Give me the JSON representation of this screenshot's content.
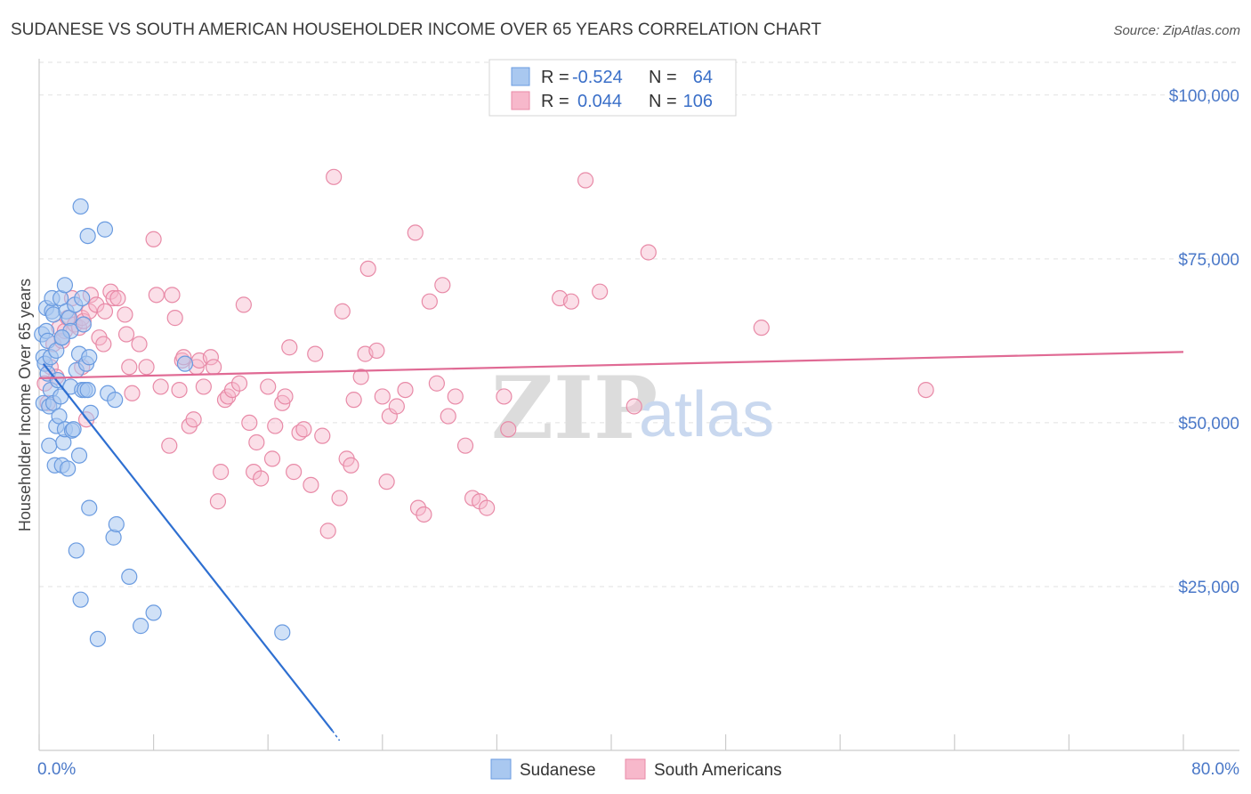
{
  "chart_data": {
    "type": "scatter",
    "title": "SUDANESE VS SOUTH AMERICAN HOUSEHOLDER INCOME OVER 65 YEARS CORRELATION CHART",
    "source": "Source: ZipAtlas.com",
    "ylabel": "Householder Income Over 65 years",
    "xlim": [
      0,
      80
    ],
    "ylim": [
      0,
      105000
    ],
    "x_tick_labels": {
      "min": "0.0%",
      "max": "80.0%"
    },
    "y_ticks": [
      {
        "value": 25000,
        "label": "$25,000"
      },
      {
        "value": 50000,
        "label": "$50,000"
      },
      {
        "value": 75000,
        "label": "$75,000"
      },
      {
        "value": 100000,
        "label": "$100,000"
      }
    ],
    "legend": {
      "rows": [
        {
          "r_label": "R = ",
          "r_value": "-0.524",
          "n_label": "N = ",
          "n_value": "64"
        },
        {
          "r_label": "R = ",
          "r_value": "0.044",
          "n_label": "N = ",
          "n_value": "106"
        }
      ]
    },
    "watermark": {
      "zip": "ZIP",
      "atlas": "atlas"
    },
    "colors": {
      "sudanese_fill": "#a9c8f0",
      "sudanese_stroke": "#6a9be0",
      "sudanese_line": "#2e6fd1",
      "south_fill": "#f7b8cb",
      "south_stroke": "#e88aa7",
      "south_line": "#e06a94",
      "grid": "#e2e2e2",
      "axis": "#cccccc"
    },
    "series": [
      {
        "name": "Sudanese",
        "trend": {
          "x0": 0.3,
          "y0": 59000,
          "x1": 20.5,
          "y1": 3000,
          "dash_to_x": 21.0,
          "dash_to_y": 1500
        },
        "points": [
          [
            0.2,
            63500
          ],
          [
            0.3,
            60000
          ],
          [
            0.3,
            53000
          ],
          [
            0.4,
            59000
          ],
          [
            0.5,
            67500
          ],
          [
            0.5,
            64000
          ],
          [
            0.6,
            62500
          ],
          [
            0.6,
            57500
          ],
          [
            0.7,
            46500
          ],
          [
            0.7,
            52500
          ],
          [
            0.8,
            60000
          ],
          [
            0.8,
            55000
          ],
          [
            0.9,
            67000
          ],
          [
            0.9,
            69000
          ],
          [
            1.0,
            53000
          ],
          [
            1.0,
            66500
          ],
          [
            1.1,
            43500
          ],
          [
            1.2,
            49500
          ],
          [
            1.2,
            61000
          ],
          [
            1.3,
            56500
          ],
          [
            1.4,
            51000
          ],
          [
            1.5,
            54000
          ],
          [
            1.5,
            69000
          ],
          [
            1.6,
            63000
          ],
          [
            1.6,
            43500
          ],
          [
            1.7,
            47000
          ],
          [
            1.8,
            71000
          ],
          [
            1.8,
            49000
          ],
          [
            1.9,
            67000
          ],
          [
            2.0,
            43000
          ],
          [
            2.1,
            66000
          ],
          [
            2.2,
            64000
          ],
          [
            2.2,
            55500
          ],
          [
            2.3,
            48800
          ],
          [
            2.4,
            49000
          ],
          [
            2.5,
            68000
          ],
          [
            2.6,
            30500
          ],
          [
            2.6,
            58000
          ],
          [
            2.8,
            60500
          ],
          [
            2.8,
            45000
          ],
          [
            2.9,
            83000
          ],
          [
            3.0,
            55000
          ],
          [
            3.0,
            69000
          ],
          [
            3.1,
            65000
          ],
          [
            3.2,
            55000
          ],
          [
            3.4,
            78500
          ],
          [
            3.6,
            51500
          ],
          [
            3.3,
            59000
          ],
          [
            3.5,
            60000
          ],
          [
            3.4,
            55000
          ],
          [
            2.9,
            23000
          ],
          [
            3.5,
            37000
          ],
          [
            4.1,
            17000
          ],
          [
            4.6,
            79500
          ],
          [
            4.8,
            54500
          ],
          [
            5.2,
            32500
          ],
          [
            5.3,
            53500
          ],
          [
            5.4,
            34500
          ],
          [
            6.3,
            26500
          ],
          [
            7.1,
            19000
          ],
          [
            8.0,
            21000
          ],
          [
            10.2,
            59000
          ],
          [
            17.0,
            18000
          ],
          [
            1.6,
            63000
          ]
        ]
      },
      {
        "name": "South Americans",
        "trend": {
          "x0": 0,
          "y0": 56800,
          "x1": 80,
          "y1": 60800
        },
        "points": [
          [
            0.4,
            56000
          ],
          [
            0.6,
            53000
          ],
          [
            0.8,
            58500
          ],
          [
            1.0,
            62000
          ],
          [
            1.2,
            57000
          ],
          [
            1.4,
            64500
          ],
          [
            1.6,
            62500
          ],
          [
            1.8,
            64000
          ],
          [
            2.0,
            66000
          ],
          [
            2.3,
            69000
          ],
          [
            2.5,
            65000
          ],
          [
            2.8,
            64500
          ],
          [
            3.0,
            58500
          ],
          [
            3.0,
            66000
          ],
          [
            3.1,
            65500
          ],
          [
            3.3,
            50500
          ],
          [
            3.5,
            67000
          ],
          [
            3.6,
            69500
          ],
          [
            4.0,
            68000
          ],
          [
            4.2,
            63000
          ],
          [
            4.5,
            62000
          ],
          [
            4.6,
            67000
          ],
          [
            5.0,
            70000
          ],
          [
            5.2,
            69000
          ],
          [
            5.5,
            69000
          ],
          [
            6.0,
            66500
          ],
          [
            6.1,
            63500
          ],
          [
            6.3,
            58500
          ],
          [
            6.5,
            54500
          ],
          [
            7.0,
            62000
          ],
          [
            7.5,
            58500
          ],
          [
            8.0,
            78000
          ],
          [
            8.2,
            69500
          ],
          [
            8.5,
            55500
          ],
          [
            9.1,
            46500
          ],
          [
            9.3,
            69500
          ],
          [
            9.5,
            66000
          ],
          [
            9.8,
            55000
          ],
          [
            10.0,
            59500
          ],
          [
            10.1,
            60000
          ],
          [
            10.5,
            49500
          ],
          [
            10.8,
            50500
          ],
          [
            11.0,
            58500
          ],
          [
            11.2,
            59500
          ],
          [
            11.5,
            55500
          ],
          [
            12.0,
            60000
          ],
          [
            12.2,
            58500
          ],
          [
            12.5,
            38000
          ],
          [
            12.7,
            42500
          ],
          [
            13.0,
            53500
          ],
          [
            13.2,
            54000
          ],
          [
            13.5,
            55000
          ],
          [
            14.0,
            56000
          ],
          [
            14.3,
            68000
          ],
          [
            14.7,
            50000
          ],
          [
            15.0,
            42500
          ],
          [
            15.2,
            47000
          ],
          [
            15.5,
            41500
          ],
          [
            16.0,
            55500
          ],
          [
            16.3,
            44500
          ],
          [
            16.5,
            49500
          ],
          [
            17.0,
            53000
          ],
          [
            17.2,
            54000
          ],
          [
            17.5,
            61500
          ],
          [
            17.8,
            42500
          ],
          [
            18.2,
            48500
          ],
          [
            18.5,
            49000
          ],
          [
            19.0,
            40500
          ],
          [
            19.3,
            60500
          ],
          [
            19.8,
            48000
          ],
          [
            20.2,
            33500
          ],
          [
            20.6,
            87500
          ],
          [
            21.0,
            38500
          ],
          [
            21.2,
            67000
          ],
          [
            21.5,
            44500
          ],
          [
            21.8,
            43500
          ],
          [
            22.0,
            53500
          ],
          [
            22.5,
            57000
          ],
          [
            22.8,
            60500
          ],
          [
            23.0,
            73500
          ],
          [
            23.6,
            61000
          ],
          [
            24.0,
            54000
          ],
          [
            24.3,
            41000
          ],
          [
            24.5,
            51000
          ],
          [
            25.0,
            52500
          ],
          [
            25.6,
            55000
          ],
          [
            26.3,
            79000
          ],
          [
            26.5,
            37000
          ],
          [
            26.9,
            36000
          ],
          [
            27.3,
            68500
          ],
          [
            27.8,
            56000
          ],
          [
            28.2,
            71000
          ],
          [
            28.6,
            51000
          ],
          [
            29.1,
            54000
          ],
          [
            29.8,
            46500
          ],
          [
            30.3,
            38500
          ],
          [
            30.8,
            38000
          ],
          [
            31.3,
            37000
          ],
          [
            32.5,
            54000
          ],
          [
            32.8,
            49000
          ],
          [
            36.4,
            69000
          ],
          [
            37.2,
            68500
          ],
          [
            38.2,
            87000
          ],
          [
            39.2,
            70000
          ],
          [
            41.6,
            52500
          ],
          [
            42.6,
            76000
          ],
          [
            50.5,
            64500
          ],
          [
            62.0,
            55000
          ]
        ]
      }
    ]
  },
  "bottom_legend": {
    "series1": "Sudanese",
    "series2": "South Americans"
  }
}
